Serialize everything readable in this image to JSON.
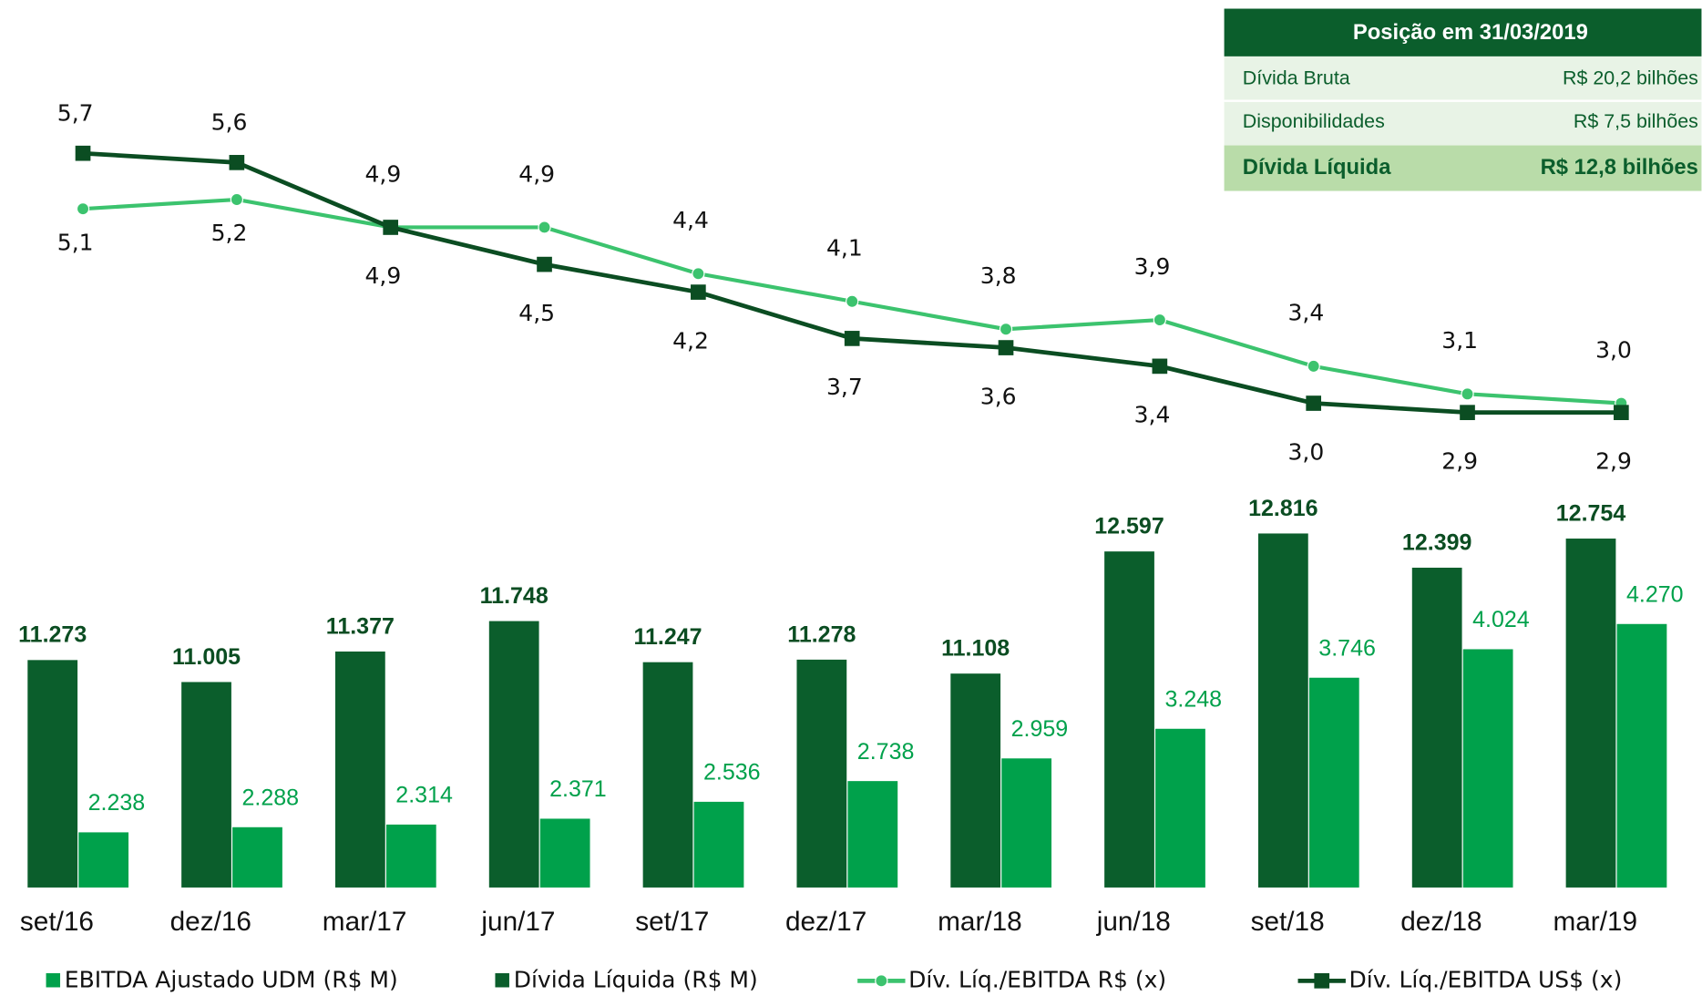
{
  "chart_data": [
    {
      "type": "bar",
      "categories": [
        "set/16",
        "dez/16",
        "mar/17",
        "jun/17",
        "set/17",
        "dez/17",
        "mar/18",
        "jun/18",
        "set/18",
        "dez/18",
        "mar/19"
      ],
      "series": [
        {
          "name": "EBITDA Ajustado UDM (R$ M)",
          "color": "#00a14b",
          "axis": "y2",
          "values": [
            2238,
            2288,
            2314,
            2371,
            2536,
            2738,
            2959,
            3248,
            3746,
            4024,
            4270
          ],
          "value_labels": [
            "2.238",
            "2.288",
            "2.314",
            "2.371",
            "2.536",
            "2.738",
            "2.959",
            "3.248",
            "3.746",
            "4.024",
            "4.270"
          ]
        },
        {
          "name": "Dívida Líquida (R$ M)",
          "color": "#0b5e2c",
          "values": [
            11273,
            11005,
            11377,
            11748,
            11247,
            11278,
            11108,
            12597,
            12816,
            12399,
            12754
          ],
          "value_labels": [
            "11.273",
            "11.005",
            "11.377",
            "11.748",
            "11.247",
            "11.278",
            "11.108",
            "12.597",
            "12.816",
            "12.399",
            "12.754"
          ]
        }
      ],
      "ylim": [
        8500,
        13500
      ],
      "y2lim": [
        1700,
        5700
      ]
    },
    {
      "type": "line",
      "series": [
        {
          "name": "Dív. Líq./EBITDA R$ (x)",
          "color": "#3cc36e",
          "values": [
            5.1,
            5.2,
            4.9,
            4.9,
            4.4,
            4.1,
            3.8,
            3.9,
            3.4,
            3.1,
            3.0
          ],
          "value_labels": [
            "5,1",
            "5,2",
            "4,9",
            "4,9",
            "4,4",
            "4,1",
            "3,8",
            "3,9",
            "3,4",
            "3,1",
            "3,0"
          ]
        },
        {
          "name": "Dív. Líq./EBITDA US$ (x)",
          "color": "#0b4d22",
          "values": [
            5.7,
            5.6,
            4.9,
            4.5,
            4.2,
            3.7,
            3.6,
            3.4,
            3.0,
            2.9,
            2.9
          ],
          "value_labels": [
            "5,7",
            "5,6",
            "4,9",
            "4,5",
            "4,2",
            "3,7",
            "3,6",
            "3,4",
            "3,0",
            "2,9",
            "2,9"
          ]
        }
      ],
      "ylim": [
        2.0,
        6.5
      ]
    }
  ],
  "table": {
    "title": "Posição em 31/03/2019",
    "rows": [
      [
        "Dívida Bruta",
        "R$ 20,2 bilhões"
      ],
      [
        "Disponibilidades",
        "R$ 7,5 bilhões"
      ],
      [
        "Dívida Líquida",
        "R$ 12,8 bilhões"
      ]
    ]
  }
}
